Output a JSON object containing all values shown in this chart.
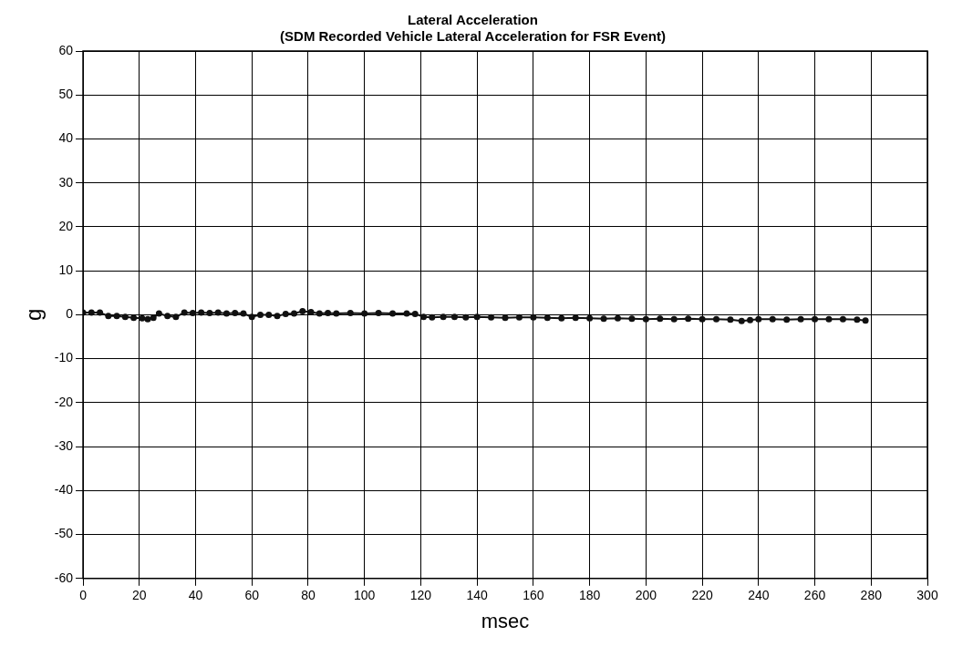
{
  "chart_data": {
    "type": "line",
    "title": "Lateral Acceleration",
    "subtitle": "(SDM Recorded Vehicle Lateral Acceleration for FSR Event)",
    "xlabel": "msec",
    "ylabel": "g",
    "x": [
      0,
      3,
      6,
      9,
      12,
      15,
      18,
      21,
      23,
      25,
      27,
      30,
      33,
      36,
      39,
      42,
      45,
      48,
      51,
      54,
      57,
      60,
      63,
      66,
      69,
      72,
      75,
      78,
      81,
      84,
      87,
      90,
      95,
      100,
      105,
      110,
      115,
      118,
      121,
      124,
      128,
      132,
      136,
      140,
      145,
      150,
      155,
      160,
      165,
      170,
      175,
      180,
      185,
      190,
      195,
      200,
      205,
      210,
      215,
      220,
      225,
      230,
      234,
      237,
      240,
      245,
      250,
      255,
      260,
      265,
      270,
      275,
      278
    ],
    "series": [
      {
        "color": "#111111",
        "values": [
          0.5,
          0.5,
          0.5,
          -0.3,
          -0.3,
          -0.5,
          -0.7,
          -0.8,
          -1,
          -0.7,
          0.3,
          -0.3,
          -0.5,
          0.5,
          0.4,
          0.5,
          0.4,
          0.5,
          0.3,
          0.4,
          0.3,
          -0.5,
          0,
          0,
          -0.3,
          0.2,
          0.3,
          0.8,
          0.6,
          0.3,
          0.4,
          0.3,
          0.4,
          0.3,
          0.4,
          0.3,
          0.3,
          0.2,
          -0.5,
          -0.6,
          -0.5,
          -0.5,
          -0.6,
          -0.5,
          -0.6,
          -0.7,
          -0.6,
          -0.6,
          -0.7,
          -0.8,
          -0.7,
          -0.8,
          -0.9,
          -0.8,
          -0.9,
          -1,
          -0.9,
          -1,
          -0.9,
          -1,
          -1,
          -1.1,
          -1.4,
          -1.2,
          -1,
          -1,
          -1.1,
          -1,
          -1,
          -1,
          -1,
          -1.1,
          -1.3
        ]
      }
    ],
    "xlim": [
      0,
      300
    ],
    "xticks": [
      0,
      20,
      40,
      60,
      80,
      100,
      120,
      140,
      160,
      180,
      200,
      220,
      240,
      260,
      280,
      300
    ],
    "ylim": [
      -60,
      60
    ],
    "yticks": [
      -60,
      -50,
      -40,
      -30,
      -20,
      -10,
      0,
      10,
      20,
      30,
      40,
      50,
      60
    ],
    "grid": true,
    "legend": false,
    "marker": "circle",
    "line_style": "solid"
  }
}
